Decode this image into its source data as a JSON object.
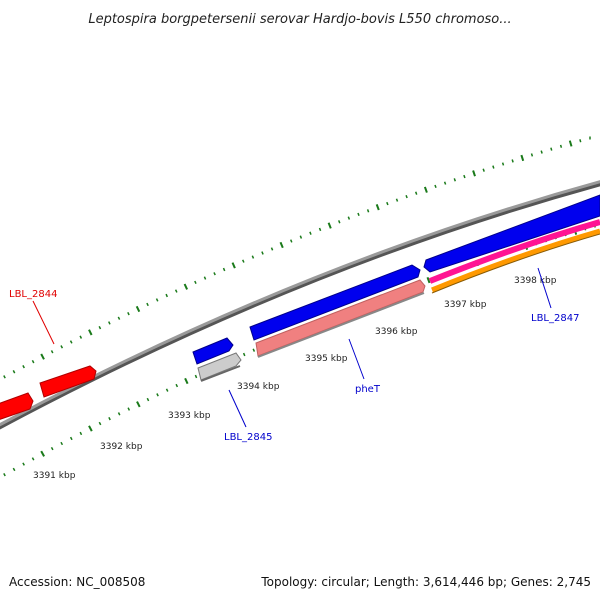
{
  "title": "Leptospira borgpetersenii serovar Hardjo-bovis L550 chromoso...",
  "footer": {
    "accession": "Accession: NC_008508",
    "summary": "Topology: circular; Length: 3,614,446 bp; Genes: 2,745"
  },
  "scale_labels": [
    "3391 kbp",
    "3392 kbp",
    "3393 kbp",
    "3394 kbp",
    "3395 kbp",
    "3396 kbp",
    "3397 kbp",
    "3398 kbp"
  ],
  "gene_labels": [
    {
      "text": "LBL_2844",
      "color": "#e00000"
    },
    {
      "text": "LBL_2845",
      "color": "#0000cc"
    },
    {
      "text": "pheT",
      "color": "#0000cc"
    },
    {
      "text": "LBL_2847",
      "color": "#0000cc"
    }
  ],
  "colors": {
    "backbone": "#808080",
    "reverse_gene": "#ff0000",
    "forward_gene": "#0000ee",
    "rna_gray": "#c8c8c8",
    "pheT_fill": "#f08080",
    "magenta_track": "#ff1493",
    "orange_track": "#ff9900",
    "tick": "#1a7a1a"
  }
}
